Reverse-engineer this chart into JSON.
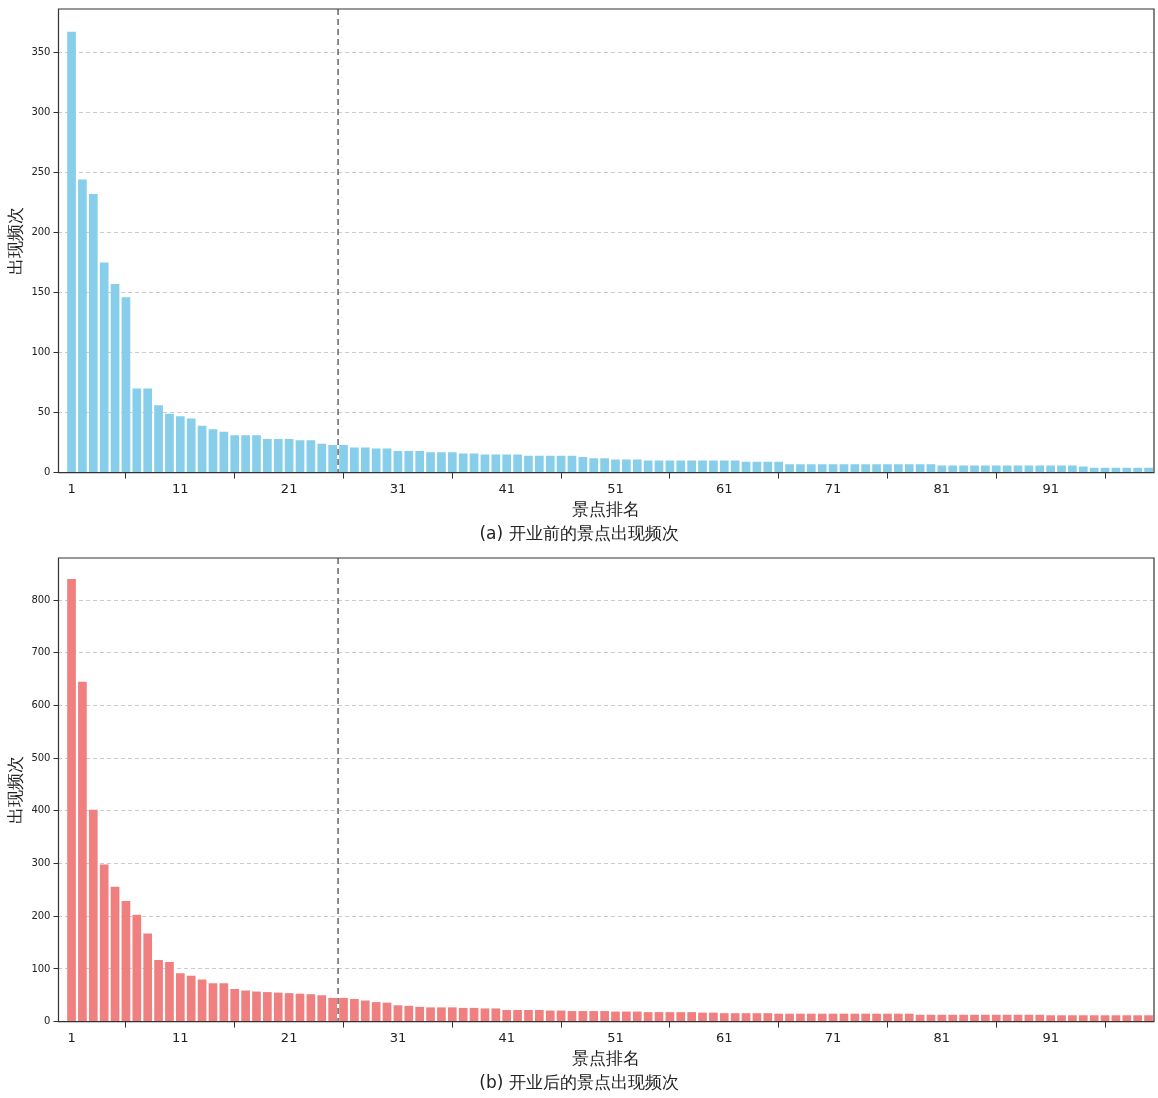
{
  "chart_data": [
    {
      "type": "bar",
      "title": "(a) 开业前的景点出现频次",
      "xlabel": "景点排名",
      "ylabel": "出现频次",
      "color": "#87ceeb",
      "grid": "y",
      "x": [
        1,
        2,
        3,
        4,
        5,
        6,
        7,
        8,
        9,
        10,
        11,
        12,
        13,
        14,
        15,
        16,
        17,
        18,
        19,
        20,
        21,
        22,
        23,
        24,
        25,
        26,
        27,
        28,
        29,
        30,
        31,
        32,
        33,
        34,
        35,
        36,
        37,
        38,
        39,
        40,
        41,
        42,
        43,
        44,
        45,
        46,
        47,
        48,
        49,
        50,
        51,
        52,
        53,
        54,
        55,
        56,
        57,
        58,
        59,
        60,
        61,
        62,
        63,
        64,
        65,
        66,
        67,
        68,
        69,
        70,
        71,
        72,
        73,
        74,
        75,
        76,
        77,
        78,
        79,
        80,
        81,
        82,
        83,
        84,
        85,
        86,
        87,
        88,
        89,
        90,
        91,
        92,
        93,
        94,
        95,
        96,
        97,
        98,
        99,
        100
      ],
      "values": [
        367,
        244,
        232,
        175,
        157,
        146,
        70,
        70,
        56,
        49,
        47,
        45,
        39,
        36,
        34,
        31,
        31,
        31,
        28,
        28,
        28,
        27,
        27,
        24,
        23,
        23,
        21,
        21,
        20,
        20,
        18,
        18,
        18,
        17,
        17,
        17,
        16,
        16,
        15,
        15,
        15,
        15,
        14,
        14,
        14,
        14,
        14,
        13,
        12,
        12,
        11,
        11,
        11,
        10,
        10,
        10,
        10,
        10,
        10,
        10,
        10,
        10,
        9,
        9,
        9,
        9,
        7,
        7,
        7,
        7,
        7,
        7,
        7,
        7,
        7,
        7,
        7,
        7,
        7,
        7,
        6,
        6,
        6,
        6,
        6,
        6,
        6,
        6,
        6,
        6,
        6,
        6,
        6,
        5,
        4,
        4,
        4,
        4,
        4,
        4
      ],
      "xlim": [
        -0.2,
        100.5
      ],
      "xticks": [
        1,
        11,
        21,
        31,
        41,
        51,
        61,
        71,
        81,
        91
      ],
      "ylim": [
        0,
        386
      ],
      "yticks": [
        0,
        50,
        100,
        150,
        200,
        250,
        300,
        350
      ],
      "ref_lines": [
        {
          "axis": "x",
          "value": 25.5,
          "color": "#666666",
          "line_style": "dashed"
        }
      ]
    },
    {
      "type": "bar",
      "title": "(b) 开业后的景点出现频次",
      "xlabel": "景点排名",
      "ylabel": "出现频次",
      "color": "#f08080",
      "grid": "y",
      "x": [
        1,
        2,
        3,
        4,
        5,
        6,
        7,
        8,
        9,
        10,
        11,
        12,
        13,
        14,
        15,
        16,
        17,
        18,
        19,
        20,
        21,
        22,
        23,
        24,
        25,
        26,
        27,
        28,
        29,
        30,
        31,
        32,
        33,
        34,
        35,
        36,
        37,
        38,
        39,
        40,
        41,
        42,
        43,
        44,
        45,
        46,
        47,
        48,
        49,
        50,
        51,
        52,
        53,
        54,
        55,
        56,
        57,
        58,
        59,
        60,
        61,
        62,
        63,
        64,
        65,
        66,
        67,
        68,
        69,
        70,
        71,
        72,
        73,
        74,
        75,
        76,
        77,
        78,
        79,
        80,
        81,
        82,
        83,
        84,
        85,
        86,
        87,
        88,
        89,
        90,
        91,
        92,
        93,
        94,
        95,
        96,
        97,
        98,
        99,
        100
      ],
      "values": [
        840,
        645,
        402,
        298,
        256,
        229,
        203,
        167,
        117,
        113,
        92,
        87,
        80,
        73,
        73,
        62,
        59,
        57,
        56,
        55,
        54,
        53,
        52,
        50,
        45,
        45,
        43,
        40,
        37,
        36,
        31,
        30,
        28,
        27,
        27,
        27,
        26,
        26,
        25,
        25,
        22,
        22,
        22,
        22,
        21,
        21,
        20,
        20,
        20,
        20,
        19,
        19,
        19,
        18,
        18,
        18,
        18,
        18,
        17,
        17,
        16,
        16,
        16,
        16,
        16,
        15,
        15,
        15,
        15,
        15,
        15,
        15,
        15,
        15,
        15,
        15,
        15,
        15,
        13,
        13,
        13,
        13,
        13,
        13,
        13,
        13,
        13,
        13,
        13,
        13,
        12,
        12,
        12,
        12,
        12,
        12,
        12,
        12,
        12,
        12
      ],
      "xlim": [
        -0.2,
        100.5
      ],
      "xticks": [
        1,
        11,
        21,
        31,
        41,
        51,
        61,
        71,
        81,
        91
      ],
      "ylim": [
        0,
        880
      ],
      "yticks": [
        0,
        100,
        200,
        300,
        400,
        500,
        600,
        700,
        800
      ],
      "ref_lines": [
        {
          "axis": "x",
          "value": 25.5,
          "color": "#666666",
          "line_style": "dashed"
        }
      ]
    }
  ]
}
